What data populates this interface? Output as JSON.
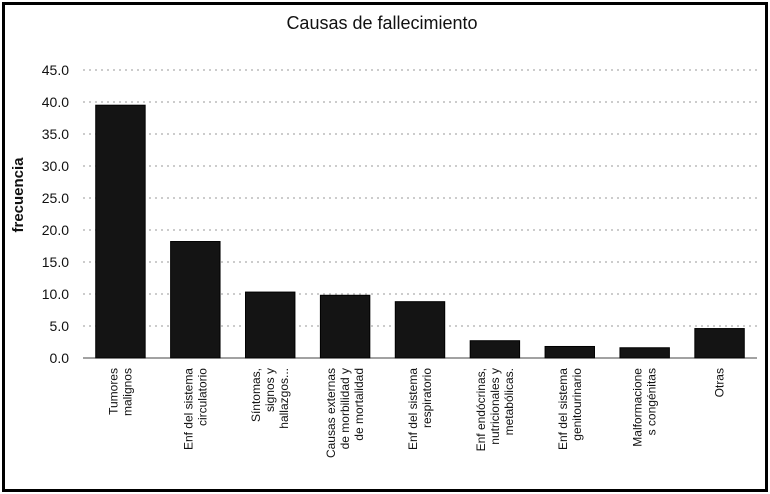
{
  "chart_data": {
    "type": "bar",
    "title": "Causas de fallecimiento",
    "xlabel": "",
    "ylabel": "frecuencia",
    "ylim": [
      0,
      45
    ],
    "yticks": [
      "0.0",
      "5.0",
      "10.0",
      "15.0",
      "20.0",
      "25.0",
      "30.0",
      "35.0",
      "40.0",
      "45.0"
    ],
    "grid": true,
    "legend": "none",
    "categories": [
      [
        "Tumores",
        "malignos"
      ],
      [
        "Enf del sistema",
        "circulatorio"
      ],
      [
        "Síntomas,",
        "signos y",
        "hallazgos..."
      ],
      [
        "Causas externas",
        "de morbilidad y",
        "de mortalidad"
      ],
      [
        "Enf del sistema",
        "respiratorio"
      ],
      [
        "Enf endócrinas,",
        "nutricionales y",
        "metabólicas."
      ],
      [
        "Enf del sistema",
        "genitourinario"
      ],
      [
        "Malformacione",
        "s congénitas"
      ],
      [
        "Otras"
      ]
    ],
    "values": [
      39.5,
      18.2,
      10.3,
      9.8,
      8.8,
      2.7,
      1.8,
      1.6,
      4.6
    ],
    "bar_color": "#141414"
  }
}
